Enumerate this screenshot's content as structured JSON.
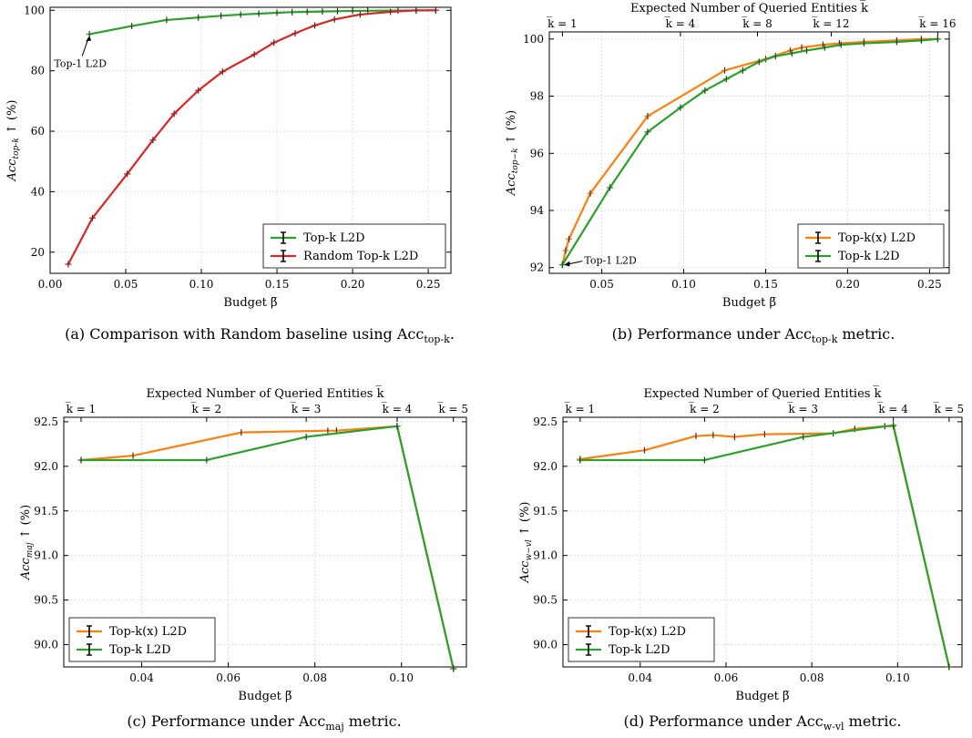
{
  "colors": {
    "topk": "#2ca02c",
    "topkx": "#ff7f0e",
    "random": "#d62728",
    "grid": "#d9d9d9"
  },
  "panels": [
    {
      "caption": "(a) Comparison with Random baseline using Acc",
      "caption_sub": "top-k",
      "caption_end": ".",
      "xlabel": "Budget β̅",
      "ylabel": "Acc",
      "ylabel_sub": "top-k",
      "ylabel_end": " ↑ (%)",
      "toplabel": "",
      "annotation": "Top-1 L2D",
      "chart_data": {
        "type": "line",
        "xlim": [
          0.0,
          0.265
        ],
        "ylim": [
          13,
          101
        ],
        "xticks": [
          0.0,
          0.05,
          0.1,
          0.15,
          0.2,
          0.25
        ],
        "xtick_labels": [
          "0.00",
          "0.05",
          "0.10",
          "0.15",
          "0.20",
          "0.25"
        ],
        "yticks": [
          20,
          40,
          60,
          80,
          100
        ],
        "ytick_labels": [
          "20",
          "40",
          "60",
          "80",
          "100"
        ],
        "top_ticks": [],
        "grid": true,
        "legend": "lower-right",
        "series": [
          {
            "name": "Top-k L2D",
            "color": "topk",
            "x": [
              0.026,
              0.054,
              0.077,
              0.098,
              0.113,
              0.126,
              0.138,
              0.15,
              0.16,
              0.17,
              0.18,
              0.19,
              0.2,
              0.21,
              0.23,
              0.242,
              0.255
            ],
            "y": [
              92.1,
              94.8,
              96.8,
              97.6,
              98.2,
              98.6,
              98.9,
              99.2,
              99.4,
              99.5,
              99.6,
              99.7,
              99.8,
              99.85,
              99.9,
              99.95,
              100.0
            ]
          },
          {
            "name": "Random Top-k L2D",
            "color": "random",
            "x": [
              0.012,
              0.028,
              0.051,
              0.068,
              0.082,
              0.098,
              0.114,
              0.135,
              0.148,
              0.162,
              0.175,
              0.188,
              0.205,
              0.225,
              0.242,
              0.255
            ],
            "y": [
              16.0,
              31.3,
              45.9,
              57.1,
              65.8,
              73.5,
              79.7,
              85.4,
              89.3,
              92.4,
              95.0,
              97.0,
              98.6,
              99.5,
              100.0,
              100.0
            ]
          }
        ],
        "annotation_point": [
          0.026,
          92.1
        ]
      }
    },
    {
      "caption": "(b) Performance under Acc",
      "caption_sub": "top-k",
      "caption_end": " metric.",
      "xlabel": "Budget β̅",
      "ylabel": "Acc",
      "ylabel_sub": "top−k",
      "ylabel_end": " ↑ (%)",
      "toplabel": "Expected Number of Queried Entities k̅",
      "annotation": "Top-1 L2D",
      "chart_data": {
        "type": "line",
        "xlim": [
          0.018,
          0.262
        ],
        "ylim": [
          91.8,
          100.25
        ],
        "xticks": [
          0.05,
          0.1,
          0.15,
          0.2,
          0.25
        ],
        "xtick_labels": [
          "0.05",
          "0.10",
          "0.15",
          "0.20",
          "0.25"
        ],
        "yticks": [
          92,
          94,
          96,
          98,
          100
        ],
        "ytick_labels": [
          "92",
          "94",
          "96",
          "98",
          "100"
        ],
        "top_ticks": [
          {
            "x": 0.026,
            "label": "k̅ = 1"
          },
          {
            "x": 0.098,
            "label": "k̅ = 4"
          },
          {
            "x": 0.145,
            "label": "k̅ = 8"
          },
          {
            "x": 0.19,
            "label": "k̅ = 12"
          },
          {
            "x": 0.255,
            "label": "k̅ = 16"
          }
        ],
        "grid": true,
        "legend": "lower-right",
        "series": [
          {
            "name": "Top-k(x) L2D",
            "color": "topkx",
            "x": [
              0.026,
              0.028,
              0.03,
              0.043,
              0.078,
              0.125,
              0.15,
              0.165,
              0.172,
              0.185,
              0.195,
              0.21,
              0.23,
              0.245,
              0.255
            ],
            "y": [
              92.1,
              92.6,
              93.0,
              94.6,
              97.3,
              98.9,
              99.3,
              99.6,
              99.7,
              99.8,
              99.85,
              99.9,
              99.95,
              100.0,
              100.0
            ]
          },
          {
            "name": "Top-k L2D",
            "color": "topk",
            "x": [
              0.026,
              0.055,
              0.078,
              0.098,
              0.113,
              0.126,
              0.136,
              0.146,
              0.156,
              0.166,
              0.175,
              0.186,
              0.196,
              0.21,
              0.23,
              0.245,
              0.255
            ],
            "y": [
              92.1,
              94.8,
              96.75,
              97.6,
              98.2,
              98.6,
              98.9,
              99.2,
              99.4,
              99.5,
              99.6,
              99.7,
              99.8,
              99.85,
              99.9,
              99.95,
              100.0
            ]
          }
        ],
        "annotation_point": [
          0.026,
          92.1
        ]
      }
    },
    {
      "caption": "(c) Performance under Acc",
      "caption_sub": "maj",
      "caption_end": " metric.",
      "xlabel": "Budget β̅",
      "ylabel": "Acc",
      "ylabel_sub": "maj",
      "ylabel_end": " ↑ (%)",
      "toplabel": "Expected Number of Queried Entities k̅",
      "annotation": "",
      "chart_data": {
        "type": "line",
        "xlim": [
          0.022,
          0.115
        ],
        "ylim": [
          89.75,
          92.55
        ],
        "xticks": [
          0.04,
          0.06,
          0.08,
          0.1
        ],
        "xtick_labels": [
          "0.04",
          "0.06",
          "0.08",
          "0.10"
        ],
        "yticks": [
          90.0,
          90.5,
          91.0,
          91.5,
          92.0,
          92.5
        ],
        "ytick_labels": [
          "90.0",
          "90.5",
          "91.0",
          "91.5",
          "92.0",
          "92.5"
        ],
        "top_ticks": [
          {
            "x": 0.026,
            "label": "k̅ = 1"
          },
          {
            "x": 0.055,
            "label": "k̅ = 2"
          },
          {
            "x": 0.078,
            "label": "k̅ = 3"
          },
          {
            "x": 0.099,
            "label": "k̅ = 4"
          },
          {
            "x": 0.112,
            "label": "k̅ = 5"
          }
        ],
        "grid": true,
        "legend": "lower-left",
        "series": [
          {
            "name": "Top-k(x) L2D",
            "color": "topkx",
            "x": [
              0.026,
              0.038,
              0.063,
              0.083,
              0.085,
              0.099,
              0.112
            ],
            "y": [
              92.07,
              92.12,
              92.38,
              92.4,
              92.4,
              92.45,
              89.73
            ]
          },
          {
            "name": "Top-k L2D",
            "color": "topk",
            "x": [
              0.026,
              0.055,
              0.078,
              0.099,
              0.112
            ],
            "y": [
              92.07,
              92.07,
              92.33,
              92.45,
              89.73
            ]
          }
        ]
      }
    },
    {
      "caption": "(d) Performance under Acc",
      "caption_sub": "w-vl",
      "caption_end": " metric.",
      "xlabel": "Budget β̅",
      "ylabel": "Acc",
      "ylabel_sub": "w−vl",
      "ylabel_end": " ↑ (%)",
      "toplabel": "Expected Number of Queried Entities k̅",
      "annotation": "",
      "chart_data": {
        "type": "line",
        "xlim": [
          0.022,
          0.115
        ],
        "ylim": [
          89.75,
          92.55
        ],
        "xticks": [
          0.04,
          0.06,
          0.08,
          0.1
        ],
        "xtick_labels": [
          "0.04",
          "0.06",
          "0.08",
          "0.10"
        ],
        "yticks": [
          90.0,
          90.5,
          91.0,
          91.5,
          92.0,
          92.5
        ],
        "ytick_labels": [
          "90.0",
          "90.5",
          "91.0",
          "91.5",
          "92.0",
          "92.5"
        ],
        "top_ticks": [
          {
            "x": 0.026,
            "label": "k̅ = 1"
          },
          {
            "x": 0.055,
            "label": "k̅ = 2"
          },
          {
            "x": 0.078,
            "label": "k̅ = 3"
          },
          {
            "x": 0.099,
            "label": "k̅ = 4"
          },
          {
            "x": 0.112,
            "label": "k̅ = 5"
          }
        ],
        "grid": true,
        "legend": "lower-left",
        "series": [
          {
            "name": "Top-k(x) L2D",
            "color": "topkx",
            "x": [
              0.026,
              0.041,
              0.053,
              0.057,
              0.062,
              0.069,
              0.085,
              0.09,
              0.097,
              0.099,
              0.112
            ],
            "y": [
              92.08,
              92.18,
              92.34,
              92.35,
              92.33,
              92.36,
              92.37,
              92.42,
              92.45,
              92.45,
              89.75
            ]
          },
          {
            "name": "Top-k L2D",
            "color": "topk",
            "x": [
              0.026,
              0.055,
              0.078,
              0.099,
              0.112
            ],
            "y": [
              92.07,
              92.07,
              92.33,
              92.46,
              89.75
            ]
          }
        ]
      }
    }
  ]
}
